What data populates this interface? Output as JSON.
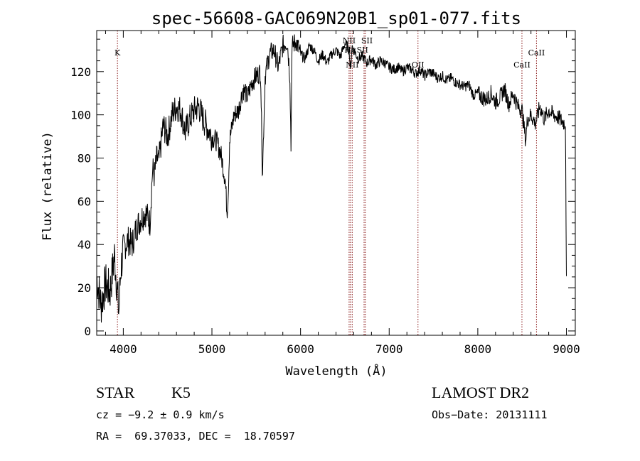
{
  "chart_data": {
    "type": "line",
    "title": "spec-56608-GAC069N20B1_sp01-077.fits",
    "xlabel": "Wavelength (Å)",
    "ylabel": "Flux (relative)",
    "xlim": [
      3700,
      9100
    ],
    "ylim": [
      -2,
      139
    ],
    "xticks": [
      4000,
      5000,
      6000,
      7000,
      8000,
      9000
    ],
    "yticks": [
      0,
      20,
      40,
      60,
      80,
      100,
      120
    ],
    "grid": false,
    "line_color": "#000000",
    "marker_color": "#8b1a1a",
    "series": [
      {
        "x": [
          3700,
          3750,
          3800,
          3850,
          3900,
          3930,
          3950,
          3970,
          4000,
          4050,
          4100,
          4150,
          4200,
          4250,
          4300,
          4330,
          4350,
          4380,
          4400,
          4450,
          4500,
          4550,
          4600,
          4650,
          4700,
          4750,
          4800,
          4850,
          4900,
          4950,
          5000,
          5050,
          5100,
          5150,
          5170,
          5185,
          5200,
          5250,
          5300,
          5350,
          5400,
          5450,
          5500,
          5550,
          5570,
          5600,
          5650,
          5700,
          5750,
          5800,
          5850,
          5880,
          5893,
          5900,
          5910,
          5950,
          6000,
          6050,
          6100,
          6150,
          6200,
          6250,
          6300,
          6350,
          6400,
          6450,
          6500,
          6550,
          6563,
          6580,
          6600,
          6650,
          6700,
          6750,
          6800,
          6850,
          6900,
          6950,
          7000,
          7050,
          7100,
          7150,
          7200,
          7250,
          7300,
          7350,
          7400,
          7450,
          7500,
          7550,
          7600,
          7650,
          7700,
          7750,
          7800,
          7850,
          7900,
          7950,
          8000,
          8050,
          8100,
          8150,
          8200,
          8250,
          8300,
          8350,
          8400,
          8450,
          8500,
          8540,
          8560,
          8600,
          8650,
          8665,
          8700,
          8750,
          8800,
          8850,
          8900,
          8950,
          8990,
          9000
        ],
        "y": [
          25,
          12,
          22,
          18,
          35,
          20,
          8,
          28,
          38,
          42,
          40,
          48,
          52,
          55,
          50,
          75,
          72,
          80,
          78,
          95,
          90,
          100,
          104,
          102,
          92,
          98,
          102,
          104,
          98,
          94,
          90,
          88,
          82,
          70,
          55,
          65,
          88,
          100,
          102,
          112,
          108,
          115,
          118,
          120,
          72,
          118,
          128,
          130,
          122,
          132,
          134,
          118,
          82,
          128,
          132,
          134,
          128,
          126,
          132,
          130,
          125,
          128,
          124,
          128,
          130,
          127,
          133,
          130,
          120,
          132,
          130,
          126,
          127,
          124,
          126,
          123,
          125,
          124,
          122,
          121,
          122,
          120,
          122,
          121,
          119,
          121,
          118,
          120,
          119,
          117,
          118,
          116,
          117,
          115,
          114,
          113,
          114,
          109,
          110,
          108,
          107,
          110,
          106,
          108,
          112,
          105,
          110,
          104,
          102,
          88,
          98,
          100,
          96,
          98,
          104,
          98,
          102,
          100,
          99,
          97,
          96,
          22
        ]
      }
    ],
    "markers": [
      {
        "label": "K",
        "x": 3934
      },
      {
        "label": "NII",
        "x": 6548
      },
      {
        "label": "NII",
        "x": 6583
      },
      {
        "label": "Hα",
        "x": 6563
      },
      {
        "label": "SII",
        "x": 6717
      },
      {
        "label": "SII",
        "x": 6731
      },
      {
        "label": "OII",
        "x": 7325
      },
      {
        "label": "CaII",
        "x": 8498
      },
      {
        "label": "CaII",
        "x": 8662
      }
    ]
  },
  "info": {
    "object_class": "STAR",
    "subclass": "K5",
    "survey": "LAMOST DR2",
    "cz": "cz = −9.2 ± 0.9 km/s",
    "obs_date": "Obs−Date: 20131111",
    "coords": "RA =  69.37033, DEC =  18.70597"
  }
}
